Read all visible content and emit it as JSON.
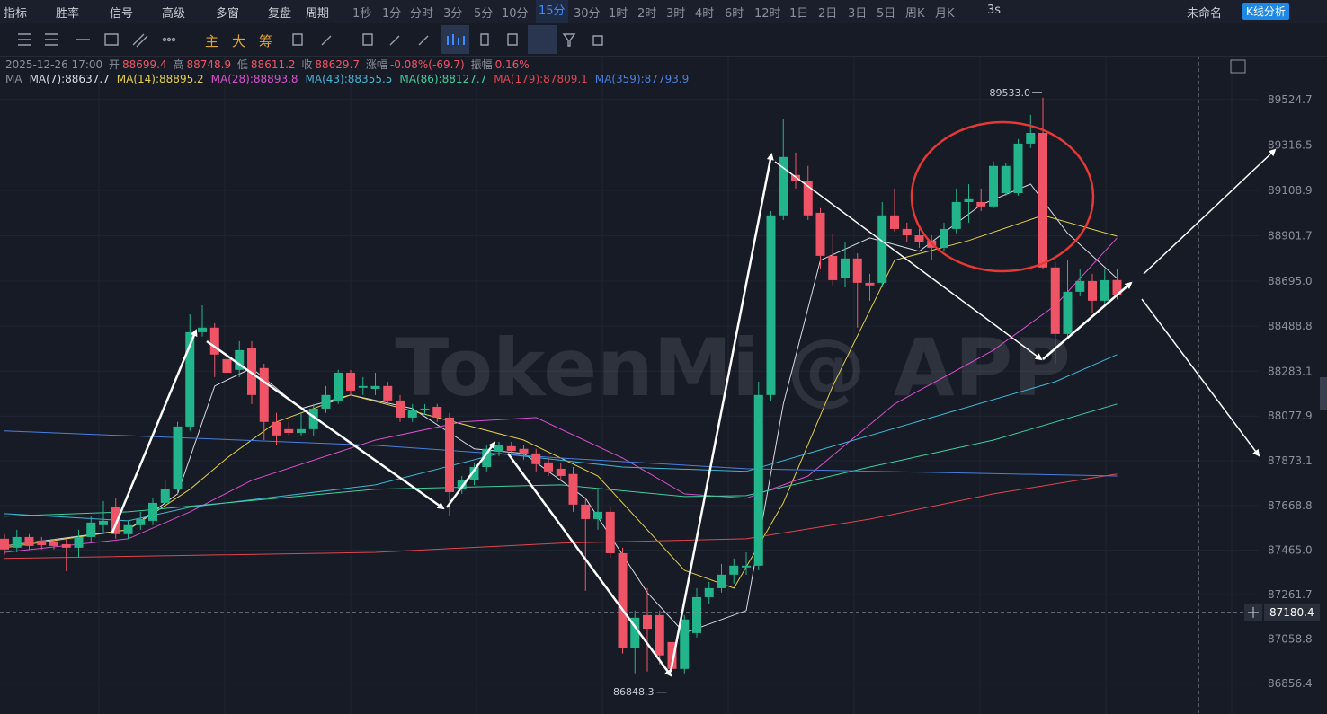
{
  "toolbar": {
    "items": [
      "指标",
      "胜率",
      "信号",
      "高级",
      "多窗",
      "复盘",
      "周期",
      "1秒",
      "1分",
      "分时",
      "3分",
      "5分",
      "10分",
      "15分",
      "30分",
      "1时",
      "2时",
      "3时",
      "4时",
      "6时",
      "12时",
      "1日",
      "2日",
      "3日",
      "5日",
      "周K",
      "月K"
    ],
    "active": "15分",
    "refresh": "3s",
    "layout_name": "未命名",
    "analysis_button": "K线分析"
  },
  "drawing_toolbar": {
    "items": [
      "主",
      "大",
      "筹"
    ]
  },
  "info": {
    "datetime": "2025-12-26 17:00",
    "open_label": "开",
    "high_label": "高",
    "low_label": "低",
    "close_label": "收",
    "change_label": "涨幅",
    "change": "-0.08%(-69.7)",
    "amplitude_label": "振幅",
    "amplitude": "0.16%",
    "ma_label": "MA"
  },
  "chart_data": {
    "type": "candlestick",
    "up_color": "#22b58b",
    "down_color": "#ef5466",
    "ylim": [
      86716,
      89725
    ],
    "yticks": [
      89524.7,
      89316.5,
      89108.9,
      88901.7,
      {
        "value": 88695,
        "label": "88695.0"
      },
      88488.8,
      88283.1,
      88077.9,
      87873.1,
      87668.8,
      {
        "value": 87465,
        "label": "87465.0"
      },
      87261.7,
      87058.8,
      86856.4
    ],
    "grid": true,
    "watermark": "TokenMi @ APP",
    "high_label": "89533.0",
    "low_label": "86848.3",
    "crosshair_price": 87180.4,
    "candles": [
      {
        "o": 87517,
        "h": 87538,
        "l": 87443,
        "c": 87468
      },
      {
        "o": 87476,
        "h": 87558,
        "l": 87455,
        "c": 87525
      },
      {
        "o": 87525,
        "h": 87538,
        "l": 87468,
        "c": 87484
      },
      {
        "o": 87509,
        "h": 87525,
        "l": 87468,
        "c": 87488
      },
      {
        "o": 87505,
        "h": 87517,
        "l": 87468,
        "c": 87484
      },
      {
        "o": 87492,
        "h": 87517,
        "l": 87369,
        "c": 87476
      },
      {
        "o": 87476,
        "h": 87558,
        "l": 87431,
        "c": 87525
      },
      {
        "o": 87525,
        "h": 87620,
        "l": 87497,
        "c": 87591
      },
      {
        "o": 87579,
        "h": 87689,
        "l": 87538,
        "c": 87599
      },
      {
        "o": 87661,
        "h": 87702,
        "l": 87517,
        "c": 87538
      },
      {
        "o": 87538,
        "h": 87599,
        "l": 87517,
        "c": 87579
      },
      {
        "o": 87579,
        "h": 87640,
        "l": 87558,
        "c": 87607
      },
      {
        "o": 87599,
        "h": 87702,
        "l": 87579,
        "c": 87681
      },
      {
        "o": 87681,
        "h": 87784,
        "l": 87661,
        "c": 87743
      },
      {
        "o": 87743,
        "h": 88051,
        "l": 87722,
        "c": 88030
      },
      {
        "o": 88030,
        "h": 88543,
        "l": 88010,
        "c": 88461
      },
      {
        "o": 88461,
        "h": 88584,
        "l": 88441,
        "c": 88482
      },
      {
        "o": 88482,
        "h": 88502,
        "l": 88256,
        "c": 88359
      },
      {
        "o": 88338,
        "h": 88400,
        "l": 88133,
        "c": 88276
      },
      {
        "o": 88289,
        "h": 88420,
        "l": 88256,
        "c": 88379
      },
      {
        "o": 88387,
        "h": 88420,
        "l": 88133,
        "c": 88174
      },
      {
        "o": 88297,
        "h": 88317,
        "l": 87968,
        "c": 88051
      },
      {
        "o": 88051,
        "h": 88092,
        "l": 87944,
        "c": 87989
      },
      {
        "o": 88018,
        "h": 88051,
        "l": 87989,
        "c": 88001
      },
      {
        "o": 88001,
        "h": 88092,
        "l": 87989,
        "c": 88018
      },
      {
        "o": 88018,
        "h": 88133,
        "l": 87989,
        "c": 88112
      },
      {
        "o": 88112,
        "h": 88215,
        "l": 88092,
        "c": 88174
      },
      {
        "o": 88149,
        "h": 88289,
        "l": 88133,
        "c": 88276
      },
      {
        "o": 88276,
        "h": 88289,
        "l": 88174,
        "c": 88194
      },
      {
        "o": 88207,
        "h": 88256,
        "l": 88174,
        "c": 88215
      },
      {
        "o": 88202,
        "h": 88276,
        "l": 88174,
        "c": 88215
      },
      {
        "o": 88215,
        "h": 88235,
        "l": 88133,
        "c": 88149
      },
      {
        "o": 88149,
        "h": 88174,
        "l": 88051,
        "c": 88071
      },
      {
        "o": 88071,
        "h": 88133,
        "l": 88051,
        "c": 88104
      },
      {
        "o": 88104,
        "h": 88133,
        "l": 88083,
        "c": 88112
      },
      {
        "o": 88120,
        "h": 88133,
        "l": 88051,
        "c": 88071
      },
      {
        "o": 88071,
        "h": 88092,
        "l": 87620,
        "c": 87730
      },
      {
        "o": 87743,
        "h": 87804,
        "l": 87722,
        "c": 87784
      },
      {
        "o": 87784,
        "h": 87866,
        "l": 87763,
        "c": 87845
      },
      {
        "o": 87845,
        "h": 87944,
        "l": 87825,
        "c": 87928
      },
      {
        "o": 87915,
        "h": 87960,
        "l": 87895,
        "c": 87944
      },
      {
        "o": 87940,
        "h": 87960,
        "l": 87907,
        "c": 87919
      },
      {
        "o": 87928,
        "h": 87944,
        "l": 87878,
        "c": 87907
      },
      {
        "o": 87907,
        "h": 87928,
        "l": 87825,
        "c": 87858
      },
      {
        "o": 87866,
        "h": 87886,
        "l": 87804,
        "c": 87825
      },
      {
        "o": 87837,
        "h": 87866,
        "l": 87784,
        "c": 87804
      },
      {
        "o": 87813,
        "h": 87845,
        "l": 87640,
        "c": 87673
      },
      {
        "o": 87673,
        "h": 87702,
        "l": 87279,
        "c": 87607
      },
      {
        "o": 87607,
        "h": 87743,
        "l": 87558,
        "c": 87640
      },
      {
        "o": 87640,
        "h": 87661,
        "l": 87431,
        "c": 87451
      },
      {
        "o": 87451,
        "h": 87476,
        "l": 86992,
        "c": 87016
      },
      {
        "o": 87016,
        "h": 87189,
        "l": 86902,
        "c": 87156
      },
      {
        "o": 87168,
        "h": 87291,
        "l": 86910,
        "c": 87106
      },
      {
        "o": 87168,
        "h": 87189,
        "l": 86943,
        "c": 86984
      },
      {
        "o": 87045,
        "h": 87066,
        "l": 86848.3,
        "c": 86922
      },
      {
        "o": 86922,
        "h": 87168,
        "l": 86902,
        "c": 87148
      },
      {
        "o": 87086,
        "h": 87291,
        "l": 87066,
        "c": 87250
      },
      {
        "o": 87250,
        "h": 87320,
        "l": 87221,
        "c": 87291
      },
      {
        "o": 87291,
        "h": 87402,
        "l": 87271,
        "c": 87353
      },
      {
        "o": 87353,
        "h": 87427,
        "l": 87312,
        "c": 87394
      },
      {
        "o": 87386,
        "h": 87455,
        "l": 87353,
        "c": 87394
      },
      {
        "o": 87394,
        "h": 88235,
        "l": 87373,
        "c": 88174
      },
      {
        "o": 88174,
        "h": 89015,
        "l": 88149,
        "c": 88995
      },
      {
        "o": 88995,
        "h": 89434,
        "l": 88974,
        "c": 89262
      },
      {
        "o": 89180,
        "h": 89282,
        "l": 89118,
        "c": 89151
      },
      {
        "o": 89151,
        "h": 89221,
        "l": 88974,
        "c": 88995
      },
      {
        "o": 89007,
        "h": 89028,
        "l": 88749,
        "c": 88810
      },
      {
        "o": 88810,
        "h": 88913,
        "l": 88675,
        "c": 88699
      },
      {
        "o": 88707,
        "h": 88872,
        "l": 88666,
        "c": 88798
      },
      {
        "o": 88798,
        "h": 88822,
        "l": 88482,
        "c": 88687
      },
      {
        "o": 88687,
        "h": 88728,
        "l": 88605,
        "c": 88675
      },
      {
        "o": 88687,
        "h": 89056,
        "l": 88666,
        "c": 88995
      },
      {
        "o": 88995,
        "h": 89118,
        "l": 88921,
        "c": 88933
      },
      {
        "o": 88933,
        "h": 88962,
        "l": 88872,
        "c": 88904
      },
      {
        "o": 88904,
        "h": 88933,
        "l": 88847,
        "c": 88872
      },
      {
        "o": 88880,
        "h": 88904,
        "l": 88790,
        "c": 88847
      },
      {
        "o": 88847,
        "h": 88962,
        "l": 88831,
        "c": 88933
      },
      {
        "o": 88933,
        "h": 89118,
        "l": 88913,
        "c": 89056
      },
      {
        "o": 89056,
        "h": 89138,
        "l": 88962,
        "c": 89069
      },
      {
        "o": 89056,
        "h": 89118,
        "l": 89015,
        "c": 89036
      },
      {
        "o": 89036,
        "h": 89241,
        "l": 89028,
        "c": 89221
      },
      {
        "o": 89097,
        "h": 89233,
        "l": 89085,
        "c": 89221
      },
      {
        "o": 89097,
        "h": 89344,
        "l": 89085,
        "c": 89323
      },
      {
        "o": 89323,
        "h": 89455,
        "l": 89303,
        "c": 89372
      },
      {
        "o": 89372,
        "h": 89533,
        "l": 88749,
        "c": 88757
      },
      {
        "o": 88757,
        "h": 88781,
        "l": 88317,
        "c": 88453
      },
      {
        "o": 88453,
        "h": 88790,
        "l": 88441,
        "c": 88646
      },
      {
        "o": 88646,
        "h": 88749,
        "l": 88625,
        "c": 88695
      },
      {
        "o": 88695,
        "h": 88728,
        "l": 88551,
        "c": 88605
      },
      {
        "o": 88605,
        "h": 88749,
        "l": 88592,
        "c": 88699
      },
      {
        "o": 88699.4,
        "h": 88748.9,
        "l": 88611.2,
        "c": 88629.7
      }
    ],
    "series": [
      {
        "name": "MA(7):88637.7",
        "color": "#d8dbe2",
        "x": [
          0,
          10,
          14,
          17,
          20,
          24,
          28,
          33,
          38,
          42,
          47,
          52,
          55,
          60,
          63,
          66,
          70,
          74,
          79,
          83,
          86,
          90
        ],
        "values": [
          87484,
          87558,
          87722,
          88215,
          88297,
          88112,
          88174,
          88112,
          87928,
          87907,
          87702,
          87271,
          87086,
          87189,
          88133,
          88790,
          88892,
          88831,
          89044,
          89138,
          88913,
          88707
        ]
      },
      {
        "name": "MA(14):88895.2",
        "color": "#e3cf45",
        "x": [
          0,
          10,
          15,
          18,
          22,
          28,
          35,
          42,
          48,
          55,
          59,
          63,
          67,
          72,
          78,
          84,
          90
        ],
        "values": [
          87476,
          87558,
          87743,
          87886,
          88051,
          88174,
          88071,
          87968,
          87804,
          87373,
          87291,
          87681,
          88215,
          88790,
          88880,
          88995,
          88900
        ]
      },
      {
        "name": "MA(28):88893.8",
        "color": "#d94fd0",
        "x": [
          0,
          10,
          15,
          20,
          30,
          37,
          43,
          50,
          55,
          60,
          65,
          72,
          80,
          85,
          90
        ],
        "values": [
          87455,
          87517,
          87640,
          87784,
          87968,
          88051,
          88071,
          87886,
          87722,
          87702,
          87804,
          88133,
          88379,
          88584,
          88892
        ]
      },
      {
        "name": "MA(43):88355.5",
        "color": "#3fb6d6",
        "x": [
          0,
          10,
          15,
          30,
          40,
          50,
          60,
          65,
          75,
          85,
          90
        ],
        "values": [
          87632,
          87599,
          87661,
          87763,
          87907,
          87845,
          87825,
          87907,
          88071,
          88235,
          88359
        ]
      },
      {
        "name": "MA(86):88127.7",
        "color": "#3fcf9c",
        "x": [
          0,
          10,
          30,
          45,
          55,
          60,
          70,
          80,
          90
        ],
        "values": [
          87620,
          87640,
          87743,
          87763,
          87710,
          87714,
          87845,
          87968,
          88133
        ]
      },
      {
        "name": "MA(179):87809.1",
        "color": "#e0464f",
        "x": [
          0,
          30,
          45,
          60,
          70,
          80,
          90
        ],
        "values": [
          87427,
          87455,
          87497,
          87517,
          87607,
          87722,
          87813
        ]
      },
      {
        "name": "MA(359):87793.9",
        "color": "#4a7fe0",
        "x": [
          0,
          30,
          45,
          60,
          90
        ],
        "values": [
          88010,
          87944,
          87886,
          87837,
          87804
        ]
      }
    ]
  }
}
